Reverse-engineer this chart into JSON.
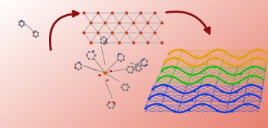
{
  "arrow_color": "#8b1212",
  "node_color": "#d04020",
  "network_line_color": "#b8b8b8",
  "layer_colors_3d": [
    "#1040e0",
    "#1040e0",
    "#1040e0",
    "#20c020",
    "#20c020",
    "#e0a010",
    "#e0a010"
  ],
  "molecule_color": "#808080",
  "molecule_n_color": "#2040cc",
  "molecule_o_color": "#cc2020",
  "molecule_cu_color": "#cc6600",
  "bg_left": "#ffffff",
  "bg_right": "#e88070"
}
